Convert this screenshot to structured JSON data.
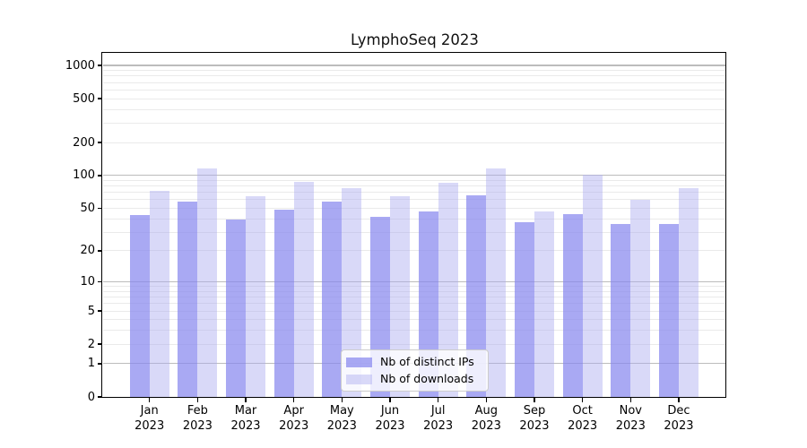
{
  "title": "LymphoSeq 2023",
  "colors": {
    "bar_ips": "rgba(136,136,238,0.72)",
    "bar_downloads": "rgba(170,170,240,0.45)",
    "grid_major": "#bcbcbc",
    "grid_minor": "#eaeaea",
    "axis_line": "#000000",
    "legend_border": "#cccccc"
  },
  "y_axis": {
    "tick_labels": [
      "0",
      "1",
      "2",
      "5",
      "10",
      "20",
      "50",
      "100",
      "200",
      "500",
      "1000"
    ],
    "scale": "log1p"
  },
  "chart_data": {
    "type": "bar",
    "title": "LymphoSeq 2023",
    "categories": [
      "Jan 2023",
      "Feb 2023",
      "Mar 2023",
      "Apr 2023",
      "May 2023",
      "Jun 2023",
      "Jul 2023",
      "Aug 2023",
      "Sep 2023",
      "Oct 2023",
      "Nov 2023",
      "Dec 2023"
    ],
    "series": [
      {
        "name": "Nb of distinct IPs",
        "values": [
          43,
          58,
          39,
          49,
          58,
          42,
          47,
          66,
          37,
          44,
          36,
          36
        ]
      },
      {
        "name": "Nb of downloads",
        "values": [
          72,
          117,
          65,
          87,
          77,
          64,
          85,
          116,
          47,
          101,
          60,
          76
        ]
      }
    ],
    "xlabel": "",
    "ylabel": "",
    "yscale": "log1p",
    "yticks": [
      0,
      1,
      2,
      5,
      10,
      20,
      50,
      100,
      200,
      500,
      1000
    ],
    "ylim": [
      0,
      1300
    ],
    "grid": "on",
    "legend_position": "bottom-center-inside"
  }
}
